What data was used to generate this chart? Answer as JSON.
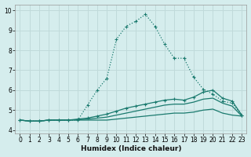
{
  "xlabel": "Humidex (Indice chaleur)",
  "xlim": [
    -0.5,
    23.5
  ],
  "ylim": [
    3.85,
    10.3
  ],
  "xticks": [
    0,
    1,
    2,
    3,
    4,
    5,
    6,
    7,
    8,
    9,
    10,
    11,
    12,
    13,
    14,
    15,
    16,
    17,
    18,
    19,
    20,
    21,
    22,
    23
  ],
  "yticks": [
    4,
    5,
    6,
    7,
    8,
    9,
    10
  ],
  "bg_color": "#d5eded",
  "line_color": "#1a7a6e",
  "grid_color": "#c0dada",
  "lines": [
    {
      "x": [
        0,
        1,
        2,
        3,
        4,
        5,
        6,
        7,
        8,
        9,
        10,
        11,
        12,
        13,
        14,
        15,
        16,
        17,
        18,
        19,
        20,
        21,
        22,
        23
      ],
      "y": [
        4.5,
        4.45,
        4.45,
        4.5,
        4.5,
        4.5,
        4.5,
        5.25,
        6.0,
        6.6,
        8.55,
        9.2,
        9.45,
        9.8,
        9.2,
        8.3,
        7.6,
        7.6,
        6.65,
        6.05,
        5.8,
        5.45,
        5.35,
        4.75
      ],
      "style": "dotted",
      "marker": "+"
    },
    {
      "x": [
        0,
        1,
        2,
        3,
        4,
        5,
        6,
        7,
        8,
        9,
        10,
        11,
        12,
        13,
        14,
        15,
        16,
        17,
        18,
        19,
        20,
        21,
        22,
        23
      ],
      "y": [
        4.5,
        4.45,
        4.45,
        4.5,
        4.5,
        4.5,
        4.5,
        4.5,
        4.5,
        4.5,
        4.55,
        4.6,
        4.65,
        4.7,
        4.75,
        4.8,
        4.85,
        4.85,
        4.9,
        5.0,
        5.05,
        4.85,
        4.75,
        4.7
      ],
      "style": "solid",
      "marker": null
    },
    {
      "x": [
        0,
        1,
        2,
        3,
        4,
        5,
        6,
        7,
        8,
        9,
        10,
        11,
        12,
        13,
        14,
        15,
        16,
        17,
        18,
        19,
        20,
        21,
        22,
        23
      ],
      "y": [
        4.5,
        4.45,
        4.45,
        4.5,
        4.5,
        4.5,
        4.55,
        4.6,
        4.7,
        4.8,
        4.95,
        5.1,
        5.2,
        5.3,
        5.4,
        5.5,
        5.55,
        5.5,
        5.65,
        5.9,
        6.0,
        5.6,
        5.45,
        4.75
      ],
      "style": "solid",
      "marker": "+"
    },
    {
      "x": [
        0,
        1,
        2,
        3,
        4,
        5,
        6,
        7,
        8,
        9,
        10,
        11,
        12,
        13,
        14,
        15,
        16,
        17,
        18,
        19,
        20,
        21,
        22,
        23
      ],
      "y": [
        4.5,
        4.45,
        4.45,
        4.5,
        4.5,
        4.5,
        4.52,
        4.55,
        4.6,
        4.65,
        4.75,
        4.85,
        4.95,
        5.05,
        5.15,
        5.25,
        5.3,
        5.3,
        5.4,
        5.55,
        5.6,
        5.35,
        5.2,
        4.7
      ],
      "style": "solid",
      "marker": null
    }
  ]
}
